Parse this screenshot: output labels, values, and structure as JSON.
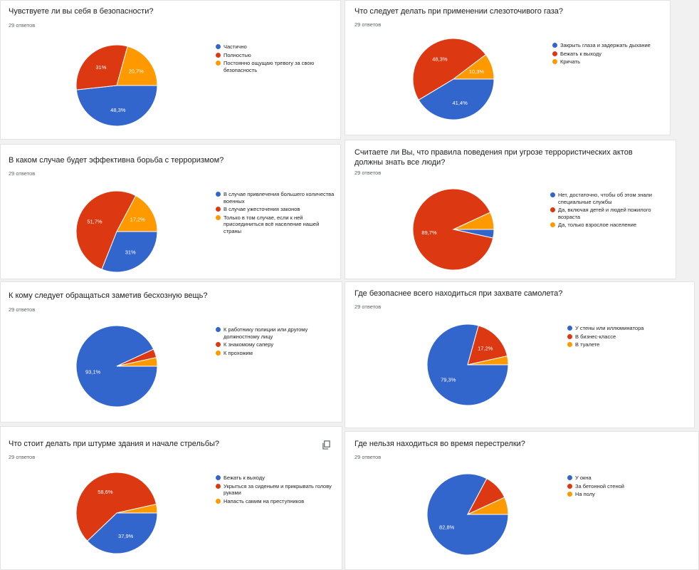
{
  "colors": {
    "blue": "#3366cc",
    "red": "#dc3912",
    "orange": "#ff9900"
  },
  "copy_icon": "copy-icon",
  "chart_data": [
    {
      "type": "pie",
      "title": "Чувствуете ли вы себя в безопасности?",
      "responses": "29 ответов",
      "categories": [
        "Частично",
        "Полностью",
        "Постоянно ощущаю тревогу за свою безопасность"
      ],
      "values": [
        48.3,
        31,
        20.7
      ],
      "labels": [
        "48,3%",
        "31%",
        "20,7%"
      ]
    },
    {
      "type": "pie",
      "title": "Что следует делать при применении слезоточивого газа?",
      "responses": "29 ответов",
      "categories": [
        "Закрыть глаза и задержать дыхание",
        "Бежать к выходу",
        "Кричать"
      ],
      "values": [
        41.4,
        48.3,
        10.3
      ],
      "labels": [
        "41,4%",
        "48,3%",
        "10,3%"
      ]
    },
    {
      "type": "pie",
      "title": "В каком случае будет эффективна борьба с терроризмом?",
      "responses": "29 ответов",
      "categories": [
        "В случае привлечения большего количества военных",
        "В случае ужесточения законов",
        "Только в том случае, если к ней присоединиться всё население нашей страны"
      ],
      "values": [
        31,
        51.7,
        17.2
      ],
      "labels": [
        "31%",
        "51,7%",
        "17,2%"
      ]
    },
    {
      "type": "pie",
      "title": "Считаете ли Вы, что правила поведения при угрозе террористических актов должны знать все люди?",
      "responses": "29 ответов",
      "categories": [
        "Нет, достаточно, чтобы об этом знали специальные службы",
        "Да, включая детей и людей пожилого возраста",
        "Да, только взрослое население"
      ],
      "values": [
        3.4,
        89.7,
        6.9
      ],
      "labels": [
        "",
        "89,7%",
        ""
      ]
    },
    {
      "type": "pie",
      "title": "К кому следует обращаться заметив бесхозную вещь?",
      "responses": "29 ответов",
      "categories": [
        "К работнику полиции или другому должностному лицу",
        "К знакомому саперу",
        "К прохожим"
      ],
      "values": [
        93.1,
        3.45,
        3.45
      ],
      "labels": [
        "93,1%",
        "",
        ""
      ]
    },
    {
      "type": "pie",
      "title": "Где безопаснее всего находиться при захвате самолета?",
      "responses": "29 ответов",
      "categories": [
        "У стены или иллюминатора",
        "В бизнес-классе",
        "В туалете"
      ],
      "values": [
        79.3,
        17.2,
        3.5
      ],
      "labels": [
        "79,3%",
        "17,2%",
        ""
      ]
    },
    {
      "type": "pie",
      "title": "Что стоит делать при штурме здания и начале стрельбы?",
      "responses": "29 ответов",
      "categories": [
        "Бежать к выходу",
        "Укрыться за сиденьем и прикрывать голову руками",
        "Напасть самим на преступников"
      ],
      "values": [
        37.9,
        58.6,
        3.5
      ],
      "labels": [
        "37,9%",
        "58,6%",
        ""
      ]
    },
    {
      "type": "pie",
      "title": "Где нельзя находиться во время перестрелки?",
      "responses": "29 ответов",
      "categories": [
        "У окна",
        "За бетонной стеной",
        "На полу"
      ],
      "values": [
        82.8,
        10.3,
        6.9
      ],
      "labels": [
        "82,8%",
        "",
        ""
      ]
    }
  ]
}
